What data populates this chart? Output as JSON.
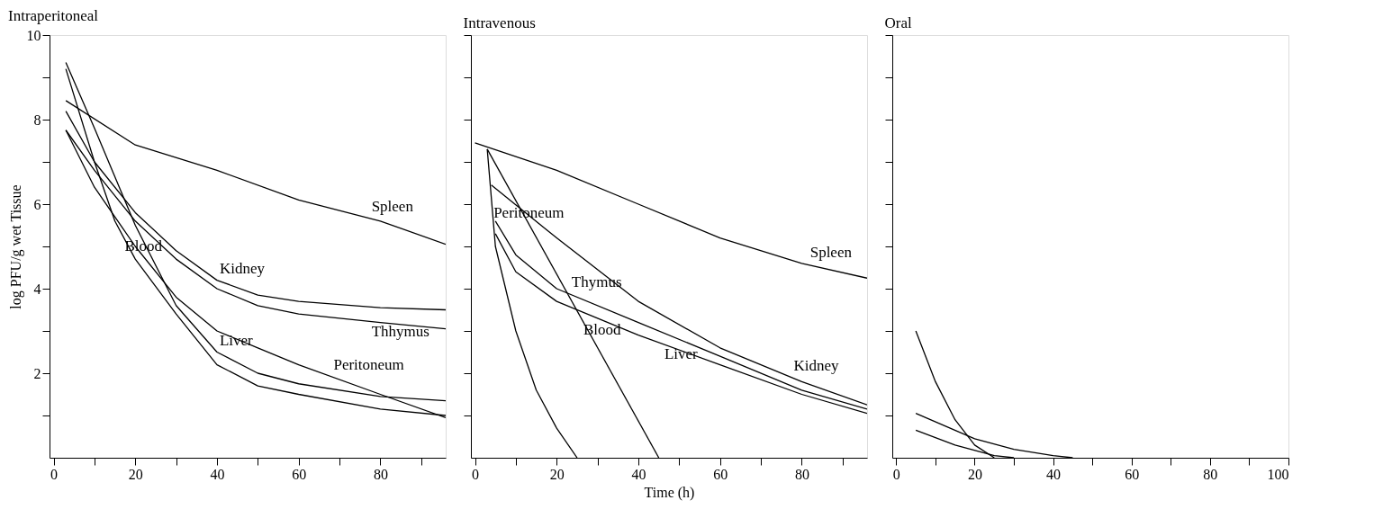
{
  "chart_data": [
    {
      "type": "line",
      "title": "Intraperitoneal",
      "ylabel": "log PFU/g wet Tissue",
      "xlim": [
        -1,
        96
      ],
      "ylim": [
        0,
        10
      ],
      "grid": false,
      "marker": "none",
      "line_style": "solid",
      "xticks": [
        0,
        {
          "value": 10,
          "label": null
        },
        20,
        {
          "value": 30,
          "label": null
        },
        40,
        {
          "value": 50,
          "label": null
        },
        60,
        {
          "value": 70,
          "label": null
        },
        80,
        {
          "value": 90,
          "label": null
        }
      ],
      "yticks": [
        {
          "value": 1,
          "label": null
        },
        2,
        {
          "value": 3,
          "label": null
        },
        4,
        {
          "value": 5,
          "label": null
        },
        6,
        {
          "value": 7,
          "label": null
        },
        8,
        {
          "value": 9,
          "label": null
        },
        10
      ],
      "series": [
        {
          "name": "Spleen",
          "color": "#000000",
          "x": [
            3,
            20,
            40,
            60,
            80,
            96
          ],
          "values": [
            8.45,
            7.4,
            6.8,
            6.1,
            5.6,
            5.05
          ]
        },
        {
          "name": "Kidney",
          "color": "#000000",
          "x": [
            3,
            10,
            20,
            30,
            40,
            50,
            60,
            80,
            96
          ],
          "values": [
            8.2,
            7.0,
            5.8,
            4.9,
            4.2,
            3.85,
            3.7,
            3.55,
            3.5
          ]
        },
        {
          "name": "Thhymus",
          "color": "#000000",
          "x": [
            3,
            10,
            20,
            30,
            40,
            50,
            60,
            80,
            96
          ],
          "values": [
            7.75,
            6.8,
            5.6,
            4.7,
            4.0,
            3.6,
            3.4,
            3.2,
            3.05
          ]
        },
        {
          "name": "Peritoneum",
          "color": "#000000",
          "x": [
            3,
            10,
            20,
            30,
            40,
            50,
            60,
            80,
            96
          ],
          "values": [
            7.75,
            6.4,
            5.0,
            3.8,
            3.0,
            2.6,
            2.2,
            1.5,
            0.95
          ]
        },
        {
          "name": "Liver",
          "color": "#000000",
          "x": [
            3,
            10,
            20,
            30,
            40,
            50,
            60,
            80,
            96
          ],
          "values": [
            9.35,
            7.8,
            5.5,
            3.6,
            2.5,
            2.0,
            1.75,
            1.45,
            1.35
          ]
        },
        {
          "name": "Blood",
          "color": "#000000",
          "x": [
            3,
            10,
            15,
            20,
            30,
            40,
            50,
            60,
            80,
            96
          ],
          "values": [
            9.2,
            7.0,
            5.6,
            4.7,
            3.4,
            2.2,
            1.7,
            1.5,
            1.15,
            1.0
          ]
        }
      ]
    },
    {
      "type": "line",
      "title": "Intravenous",
      "xlabel": "Time (h)",
      "xlim": [
        -1,
        96
      ],
      "ylim": [
        0,
        10
      ],
      "grid": false,
      "marker": "none",
      "line_style": "solid",
      "tick_labels": "x",
      "xticks": [
        0,
        {
          "value": 10,
          "label": null
        },
        20,
        {
          "value": 30,
          "label": null
        },
        40,
        {
          "value": 50,
          "label": null
        },
        60,
        {
          "value": 70,
          "label": null
        },
        80,
        {
          "value": 90,
          "label": null
        }
      ],
      "yticks": [
        {
          "value": 1,
          "label": null
        },
        {
          "value": 2,
          "label": null
        },
        {
          "value": 3,
          "label": null
        },
        {
          "value": 4,
          "label": null
        },
        {
          "value": 5,
          "label": null
        },
        {
          "value": 6,
          "label": null
        },
        {
          "value": 7,
          "label": null
        },
        {
          "value": 8,
          "label": null
        },
        {
          "value": 9,
          "label": null
        },
        {
          "value": 10,
          "label": null
        }
      ],
      "series": [
        {
          "name": "Spleen",
          "color": "#000000",
          "x": [
            0,
            20,
            40,
            60,
            80,
            96
          ],
          "values": [
            7.45,
            6.8,
            6.0,
            5.2,
            4.6,
            4.25
          ]
        },
        {
          "name": "Kidney",
          "color": "#000000",
          "x": [
            4,
            20,
            40,
            60,
            80,
            96
          ],
          "values": [
            6.45,
            5.2,
            3.7,
            2.6,
            1.8,
            1.25
          ]
        },
        {
          "name": "Thymus",
          "color": "#000000",
          "x": [
            5,
            10,
            20,
            40,
            60,
            80,
            96
          ],
          "values": [
            5.6,
            4.8,
            4.0,
            3.2,
            2.4,
            1.6,
            1.15
          ]
        },
        {
          "name": "Liver",
          "color": "#000000",
          "x": [
            5,
            10,
            20,
            40,
            60,
            80,
            96
          ],
          "values": [
            5.3,
            4.4,
            3.7,
            2.9,
            2.2,
            1.5,
            1.05
          ]
        },
        {
          "name": "Blood",
          "color": "#000000",
          "x": [
            3,
            45
          ],
          "values": [
            7.3,
            0
          ]
        },
        {
          "name": "Peritoneum",
          "color": "#000000",
          "x": [
            3,
            5,
            10,
            15,
            20,
            25
          ],
          "values": [
            7.3,
            5.0,
            3.0,
            1.6,
            0.7,
            0
          ]
        }
      ]
    },
    {
      "type": "line",
      "title": "Oral",
      "xlim": [
        -1,
        100
      ],
      "ylim": [
        0,
        10
      ],
      "grid": false,
      "marker": "none",
      "line_style": "solid",
      "tick_labels": "x",
      "xticks": [
        0,
        {
          "value": 10,
          "label": null
        },
        20,
        {
          "value": 30,
          "label": null
        },
        40,
        {
          "value": 50,
          "label": null
        },
        60,
        {
          "value": 70,
          "label": null
        },
        80,
        {
          "value": 90,
          "label": null
        },
        100
      ],
      "yticks": [
        {
          "value": 1,
          "label": null
        },
        {
          "value": 2,
          "label": null
        },
        {
          "value": 3,
          "label": null
        },
        {
          "value": 4,
          "label": null
        },
        {
          "value": 5,
          "label": null
        },
        {
          "value": 6,
          "label": null
        },
        {
          "value": 7,
          "label": null
        },
        {
          "value": 8,
          "label": null
        },
        {
          "value": 9,
          "label": null
        },
        {
          "value": 10,
          "label": null
        }
      ],
      "series": [
        {
          "color": "#000000",
          "x": [
            5,
            10,
            15,
            20,
            25
          ],
          "values": [
            3.0,
            1.8,
            0.9,
            0.3,
            0
          ]
        },
        {
          "color": "#000000",
          "x": [
            5,
            20,
            30,
            40,
            45
          ],
          "values": [
            1.05,
            0.45,
            0.2,
            0.05,
            0
          ]
        },
        {
          "color": "#000000",
          "x": [
            5,
            15,
            25,
            30
          ],
          "values": [
            0.65,
            0.3,
            0.05,
            0
          ]
        }
      ]
    }
  ]
}
